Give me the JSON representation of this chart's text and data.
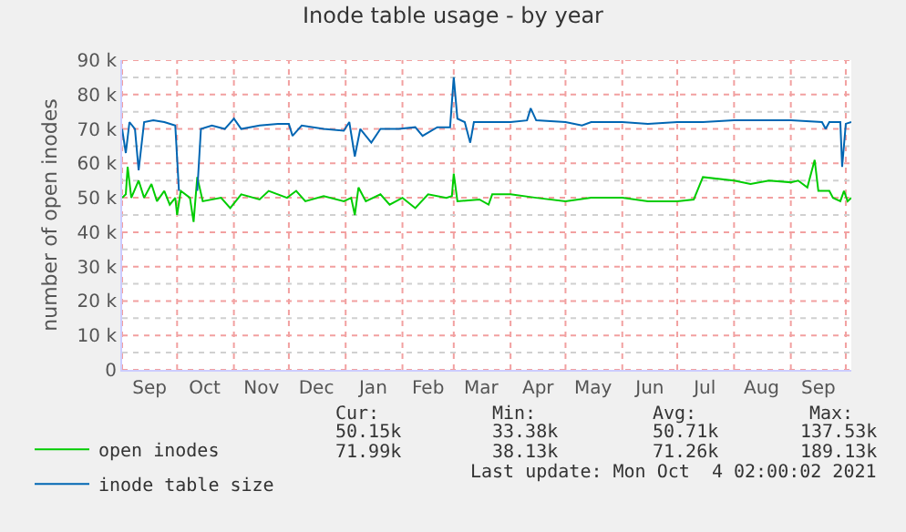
{
  "chart_data": {
    "type": "line",
    "title": "Inode table usage - by year",
    "ylabel": "number of open inodes",
    "xlim": [
      "2020-09-01",
      "2021-10-04"
    ],
    "xticks": [
      {
        "value": "2020-09-01",
        "label": null
      },
      {
        "value": "2020-09-16",
        "label": "Sep"
      },
      {
        "value": "2020-10-01",
        "label": null
      },
      {
        "value": "2020-10-16",
        "label": "Oct"
      },
      {
        "value": "2020-11-01",
        "label": null
      },
      {
        "value": "2020-11-16",
        "label": "Nov"
      },
      {
        "value": "2020-12-01",
        "label": null
      },
      {
        "value": "2020-12-16",
        "label": "Dec"
      },
      {
        "value": "2021-01-01",
        "label": null
      },
      {
        "value": "2021-01-16",
        "label": "Jan"
      },
      {
        "value": "2021-02-01",
        "label": null
      },
      {
        "value": "2021-02-15",
        "label": "Feb"
      },
      {
        "value": "2021-03-01",
        "label": null
      },
      {
        "value": "2021-03-16",
        "label": "Mar"
      },
      {
        "value": "2021-04-01",
        "label": null
      },
      {
        "value": "2021-04-16",
        "label": "Apr"
      },
      {
        "value": "2021-05-01",
        "label": null
      },
      {
        "value": "2021-05-16",
        "label": "May"
      },
      {
        "value": "2021-06-01",
        "label": null
      },
      {
        "value": "2021-06-16",
        "label": "Jun"
      },
      {
        "value": "2021-07-01",
        "label": null
      },
      {
        "value": "2021-07-16",
        "label": "Jul"
      },
      {
        "value": "2021-08-01",
        "label": null
      },
      {
        "value": "2021-08-16",
        "label": "Aug"
      },
      {
        "value": "2021-09-01",
        "label": null
      },
      {
        "value": "2021-09-16",
        "label": "Sep"
      },
      {
        "value": "2021-10-01",
        "label": null
      }
    ],
    "ylim": [
      0,
      90000
    ],
    "yticks": [
      {
        "value": 0,
        "label": "0"
      },
      {
        "value": 5000,
        "label": null
      },
      {
        "value": 10000,
        "label": "10 k"
      },
      {
        "value": 15000,
        "label": null
      },
      {
        "value": 20000,
        "label": "20 k"
      },
      {
        "value": 25000,
        "label": null
      },
      {
        "value": 30000,
        "label": "30 k"
      },
      {
        "value": 35000,
        "label": null
      },
      {
        "value": 40000,
        "label": "40 k"
      },
      {
        "value": 45000,
        "label": null
      },
      {
        "value": 50000,
        "label": "50 k"
      },
      {
        "value": 55000,
        "label": null
      },
      {
        "value": 60000,
        "label": "60 k"
      },
      {
        "value": 65000,
        "label": null
      },
      {
        "value": 70000,
        "label": "70 k"
      },
      {
        "value": 75000,
        "label": null
      },
      {
        "value": 80000,
        "label": "80 k"
      },
      {
        "value": 85000,
        "label": null
      },
      {
        "value": 90000,
        "label": "90 k"
      }
    ],
    "grid": true,
    "legend": "bottom left",
    "marker": "none",
    "line_style": "solid",
    "series": [
      {
        "name": "open inodes",
        "color": "#00cc00",
        "x": [
          "2020-09-01",
          "2020-09-03",
          "2020-09-04",
          "2020-09-06",
          "2020-09-10",
          "2020-09-13",
          "2020-09-17",
          "2020-09-20",
          "2020-09-24",
          "2020-09-27",
          "2020-09-30",
          "2020-10-01",
          "2020-10-03",
          "2020-10-08",
          "2020-10-10",
          "2020-10-12",
          "2020-10-15",
          "2020-10-25",
          "2020-10-30",
          "2020-11-05",
          "2020-11-15",
          "2020-11-20",
          "2020-11-30",
          "2020-12-05",
          "2020-12-10",
          "2020-12-20",
          "2020-12-31",
          "2021-01-04",
          "2021-01-06",
          "2021-01-08",
          "2021-01-12",
          "2021-01-20",
          "2021-01-25",
          "2021-02-01",
          "2021-02-08",
          "2021-02-15",
          "2021-02-25",
          "2021-02-28",
          "2021-03-01",
          "2021-03-03",
          "2021-03-15",
          "2021-03-20",
          "2021-03-22",
          "2021-04-01",
          "2021-04-15",
          "2021-05-01",
          "2021-05-15",
          "2021-06-01",
          "2021-06-15",
          "2021-07-01",
          "2021-07-10",
          "2021-07-15",
          "2021-08-01",
          "2021-08-10",
          "2021-08-20",
          "2021-09-01",
          "2021-09-05",
          "2021-09-10",
          "2021-09-14",
          "2021-09-16",
          "2021-09-22",
          "2021-09-24",
          "2021-09-28",
          "2021-09-30",
          "2021-10-02",
          "2021-10-04"
        ],
        "values": [
          50000,
          51000,
          59000,
          50000,
          55000,
          50000,
          54000,
          49000,
          52000,
          48000,
          50000,
          45000,
          52000,
          50000,
          43000,
          56000,
          49000,
          50000,
          47000,
          51000,
          49500,
          52000,
          50000,
          52000,
          49000,
          50500,
          49000,
          50000,
          45000,
          53000,
          49000,
          51000,
          48000,
          50000,
          47000,
          51000,
          50000,
          50500,
          57000,
          49000,
          49500,
          48000,
          51000,
          51000,
          50000,
          49000,
          50000,
          50000,
          49000,
          49000,
          49500,
          56000,
          55000,
          54000,
          55000,
          54500,
          55000,
          53000,
          61000,
          52000,
          52000,
          50000,
          49000,
          52000,
          49000,
          50000
        ]
      },
      {
        "name": "inode table size",
        "color": "#0066b3",
        "x": [
          "2020-09-01",
          "2020-09-03",
          "2020-09-05",
          "2020-09-08",
          "2020-09-10",
          "2020-09-13",
          "2020-09-18",
          "2020-09-24",
          "2020-09-30",
          "2020-10-02",
          "2020-10-05",
          "2020-10-12",
          "2020-10-14",
          "2020-10-20",
          "2020-10-27",
          "2020-11-01",
          "2020-11-05",
          "2020-11-15",
          "2020-11-25",
          "2020-12-01",
          "2020-12-03",
          "2020-12-08",
          "2020-12-20",
          "2020-12-31",
          "2021-01-03",
          "2021-01-06",
          "2021-01-09",
          "2021-01-15",
          "2021-01-20",
          "2021-01-30",
          "2021-02-08",
          "2021-02-12",
          "2021-02-20",
          "2021-02-27",
          "2021-03-01",
          "2021-03-03",
          "2021-03-07",
          "2021-03-10",
          "2021-03-12",
          "2021-03-20",
          "2021-04-01",
          "2021-04-10",
          "2021-04-12",
          "2021-04-15",
          "2021-05-01",
          "2021-05-10",
          "2021-05-15",
          "2021-06-01",
          "2021-06-15",
          "2021-07-01",
          "2021-07-15",
          "2021-08-01",
          "2021-08-20",
          "2021-09-01",
          "2021-09-18",
          "2021-09-20",
          "2021-09-22",
          "2021-09-28",
          "2021-09-29",
          "2021-10-01",
          "2021-10-04"
        ],
        "values": [
          70000,
          63000,
          72000,
          70000,
          58000,
          72000,
          72500,
          72000,
          71000,
          52000,
          null,
          52000,
          70000,
          71000,
          70000,
          73000,
          70000,
          71000,
          71500,
          71500,
          68000,
          71000,
          70000,
          69500,
          72000,
          62000,
          70000,
          66000,
          70000,
          70000,
          70500,
          68000,
          70500,
          70500,
          85000,
          73000,
          72000,
          66000,
          72000,
          72000,
          72000,
          72500,
          76000,
          72500,
          72000,
          71000,
          72000,
          72000,
          71500,
          72000,
          72000,
          72500,
          72500,
          72500,
          72000,
          70000,
          72000,
          72000,
          59000,
          71500,
          72000
        ]
      }
    ],
    "annotations": [
      "Cur:",
      "Min:",
      "Avg:",
      "Max:",
      "50.15k",
      "33.38k",
      "50.71k",
      "137.53k",
      "71.99k",
      "38.13k",
      "71.26k",
      "189.13k",
      "Last update: Mon Oct  4 02:00:02 2021"
    ]
  }
}
